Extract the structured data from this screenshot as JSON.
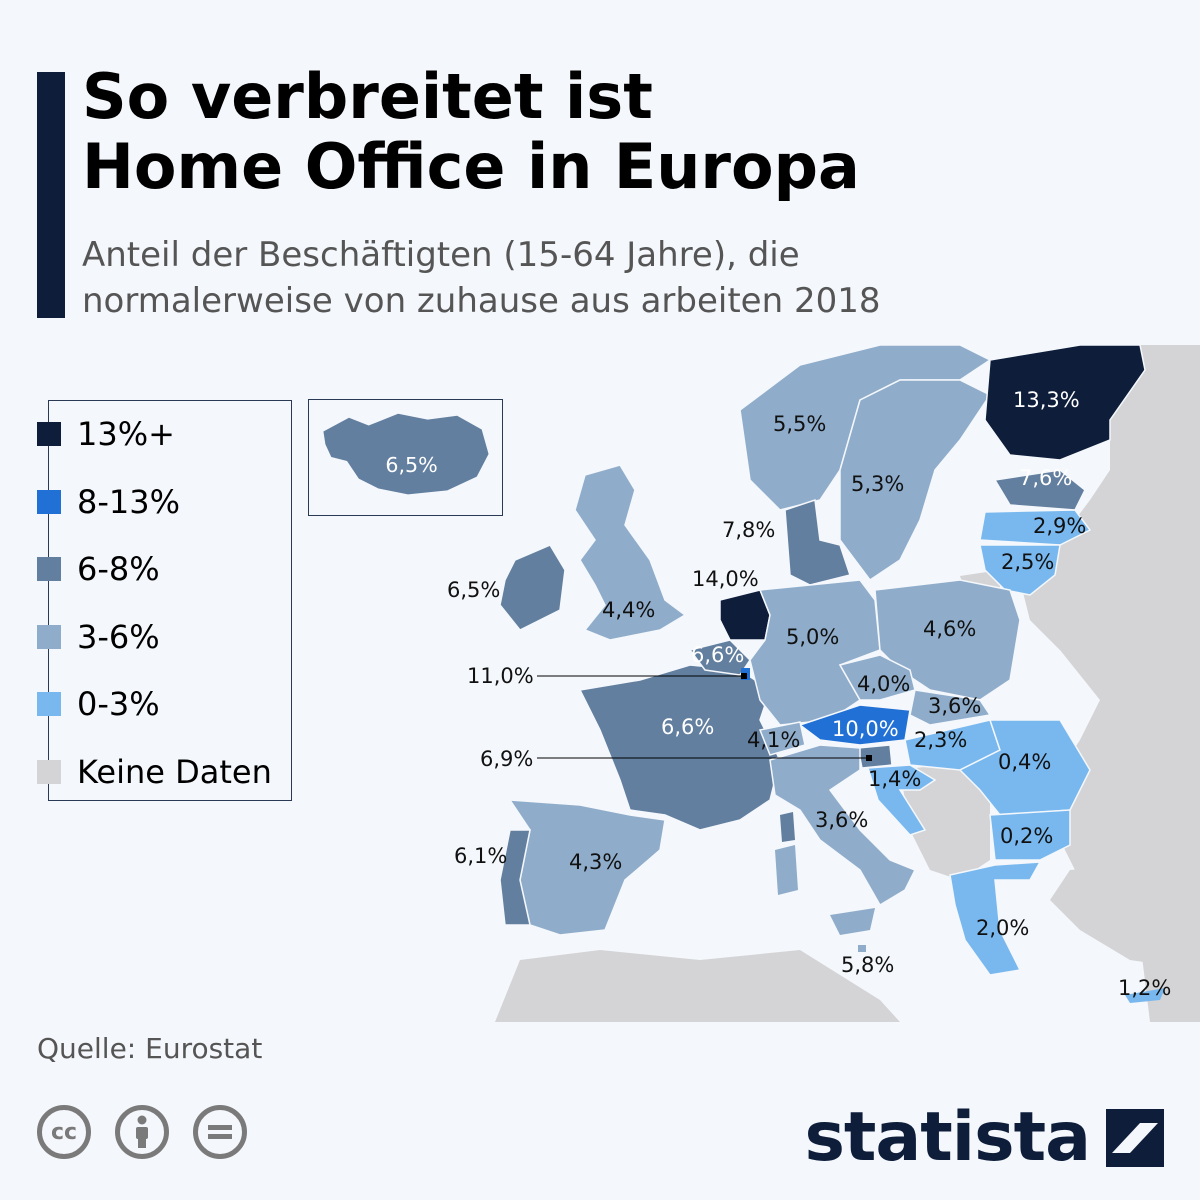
{
  "header": {
    "title_line1": "So verbreitet ist",
    "title_line2": "Home Office in Europa",
    "subtitle_line1": "Anteil der Beschäftigten (15-64 Jahre), die",
    "subtitle_line2": "normalerweise von zuhause aus arbeiten 2018"
  },
  "legend": {
    "items": [
      {
        "label": "13%+",
        "color": "#0d1d3a"
      },
      {
        "label": "8-13%",
        "color": "#2170d6"
      },
      {
        "label": "6-8%",
        "color": "#627f9f"
      },
      {
        "label": "3-6%",
        "color": "#8fadcb"
      },
      {
        "label": "0-3%",
        "color": "#78b8ef"
      },
      {
        "label": "Keine Daten",
        "color": "#d4d4d6"
      }
    ]
  },
  "map": {
    "countries": {
      "norway": "5,5%",
      "sweden": "5,3%",
      "finland": "13,3%",
      "estonia": "7,6%",
      "latvia": "2,9%",
      "lithuania": "2,5%",
      "denmark": "7,8%",
      "netherlands": "14,0%",
      "ireland": "6,5%",
      "uk": "4,4%",
      "germany": "5,0%",
      "poland": "4,6%",
      "belgium": "6,6%",
      "luxembourg": "11,0%",
      "czechia": "4,0%",
      "slovakia": "3,6%",
      "austria": "10,0%",
      "hungary": "2,3%",
      "switzerland": "4,1%",
      "slovenia": "6,9%",
      "croatia": "1,4%",
      "romania": "0,4%",
      "bulgaria": "0,2%",
      "france": "6,6%",
      "portugal": "6,1%",
      "spain": "4,3%",
      "italy": "3,6%",
      "malta": "5,8%",
      "greece": "2,0%",
      "cyprus": "1,2%",
      "iceland": "6,5%"
    }
  },
  "footer": {
    "source": "Quelle: Eurostat",
    "license_icons": [
      "cc-icon",
      "attribution-icon",
      "no-derivatives-icon"
    ],
    "brand": "statista"
  }
}
